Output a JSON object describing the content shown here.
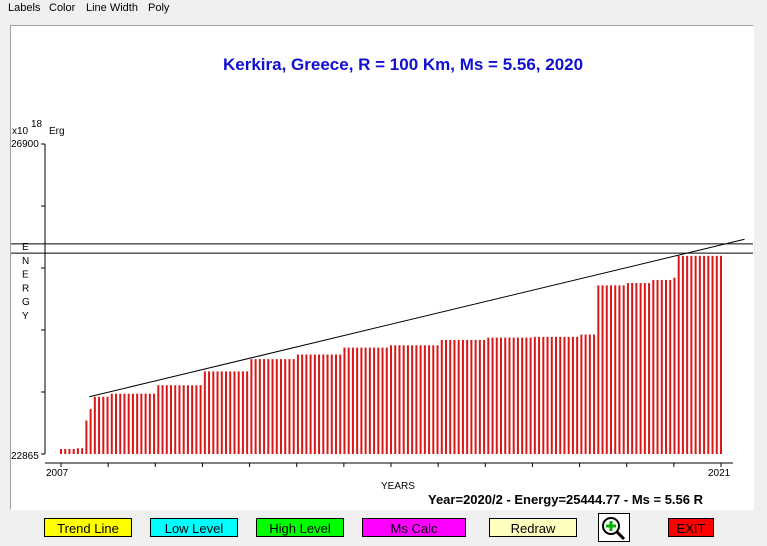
{
  "menu": [
    "Labels",
    "Color",
    "Line Width",
    "Poly"
  ],
  "title": "Kerkira, Greece, R = 100 Km, Ms = 5.56, 2020",
  "axis": {
    "multiplier_base": "x10",
    "multiplier_exp": "18",
    "unit": "Erg",
    "ymax_label": "26900",
    "ymin_label": "22865",
    "ylabel": "ENERGY",
    "xlabel": "YEARS",
    "xmin_label": "2007",
    "xmax_label": "2021"
  },
  "status": "Year=2020/2 - Energy=25444.77 - Ms = 5.56 R",
  "buttons": {
    "trend": "Trend Line",
    "low": "Low Level",
    "high": "High Level",
    "ms": "Ms Calc",
    "redraw": "Redraw",
    "exit": "EXIT"
  },
  "colors": {
    "title": "#1010d0",
    "bars": "#d81818",
    "trend_btn": "#ffff00",
    "low_btn": "#00ffff",
    "high_btn": "#00ff00",
    "ms_btn": "#ff00ff",
    "redraw_btn": "#ffffc0",
    "exit_btn": "#ff0000"
  },
  "chart_data": {
    "type": "bar",
    "x_range": [
      2007,
      2021
    ],
    "ylim": [
      22865,
      26900
    ],
    "unit": "x10^18 Erg",
    "steps": [
      {
        "x": 2007.0,
        "y": 22930
      },
      {
        "x": 2007.3,
        "y": 22940
      },
      {
        "x": 2007.45,
        "y": 23300
      },
      {
        "x": 2007.55,
        "y": 23450
      },
      {
        "x": 2007.7,
        "y": 23610
      },
      {
        "x": 2008.0,
        "y": 23650
      },
      {
        "x": 2009.0,
        "y": 23760
      },
      {
        "x": 2010.0,
        "y": 23940
      },
      {
        "x": 2011.0,
        "y": 24100
      },
      {
        "x": 2012.0,
        "y": 24160
      },
      {
        "x": 2013.0,
        "y": 24250
      },
      {
        "x": 2014.0,
        "y": 24280
      },
      {
        "x": 2015.0,
        "y": 24350
      },
      {
        "x": 2016.0,
        "y": 24380
      },
      {
        "x": 2017.0,
        "y": 24390
      },
      {
        "x": 2018.0,
        "y": 24420
      },
      {
        "x": 2018.38,
        "y": 25060
      },
      {
        "x": 2019.0,
        "y": 25090
      },
      {
        "x": 2019.5,
        "y": 25130
      },
      {
        "x": 2020.0,
        "y": 25160
      },
      {
        "x": 2020.05,
        "y": 25444
      },
      {
        "x": 2021.0,
        "y": 25444
      }
    ],
    "trend_line": {
      "x": [
        2007.6,
        2021.5
      ],
      "y": [
        23610,
        25660
      ]
    },
    "high_level": 25600,
    "low_level": 25480
  }
}
